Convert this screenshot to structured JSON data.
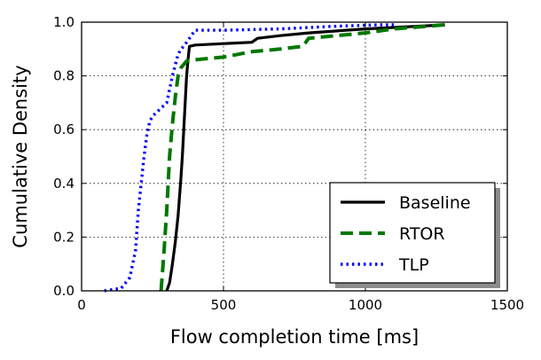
{
  "chart_data": {
    "type": "line",
    "xlabel": "Flow completion time [ms]",
    "ylabel": "Cumulative Density",
    "xlim": [
      0,
      1500
    ],
    "ylim": [
      0,
      1.0
    ],
    "xticks": [
      0,
      500,
      1000,
      1500
    ],
    "yticks": [
      0.0,
      0.2,
      0.4,
      0.6,
      0.8,
      1.0
    ],
    "xtick_labels": [
      "0",
      "500",
      "1000",
      "1500"
    ],
    "ytick_labels": [
      "0.0",
      "0.2",
      "0.4",
      "0.6",
      "0.8",
      "1.0"
    ],
    "grid": true,
    "legend_position": "lower-right",
    "series": [
      {
        "name": "Baseline",
        "color": "#000000",
        "style": "solid",
        "x": [
          300,
          310,
          320,
          330,
          340,
          350,
          355,
          360,
          365,
          370,
          375,
          380,
          400,
          500,
          600,
          620,
          700,
          800,
          1000,
          1280
        ],
        "y": [
          0.0,
          0.03,
          0.1,
          0.18,
          0.28,
          0.42,
          0.5,
          0.6,
          0.7,
          0.8,
          0.86,
          0.91,
          0.915,
          0.92,
          0.925,
          0.94,
          0.95,
          0.96,
          0.975,
          0.99
        ]
      },
      {
        "name": "RTOR",
        "color": "#007700",
        "style": "dashed",
        "x": [
          280,
          285,
          290,
          300,
          310,
          320,
          330,
          340,
          350,
          370,
          400,
          500,
          600,
          700,
          780,
          800,
          1000,
          1100,
          1280
        ],
        "y": [
          0.0,
          0.07,
          0.14,
          0.3,
          0.5,
          0.62,
          0.72,
          0.8,
          0.83,
          0.855,
          0.86,
          0.87,
          0.89,
          0.9,
          0.91,
          0.94,
          0.96,
          0.975,
          0.99
        ]
      },
      {
        "name": "TLP",
        "color": "#0000ff",
        "style": "dotted",
        "x": [
          80,
          140,
          170,
          190,
          200,
          210,
          220,
          230,
          240,
          250,
          260,
          280,
          300,
          320,
          340,
          350,
          360,
          400,
          500,
          700,
          900,
          1050,
          1100
        ],
        "y": [
          0.0,
          0.01,
          0.05,
          0.15,
          0.3,
          0.4,
          0.5,
          0.58,
          0.63,
          0.65,
          0.66,
          0.68,
          0.7,
          0.8,
          0.88,
          0.9,
          0.91,
          0.97,
          0.97,
          0.975,
          0.985,
          0.99,
          0.99
        ]
      }
    ]
  }
}
